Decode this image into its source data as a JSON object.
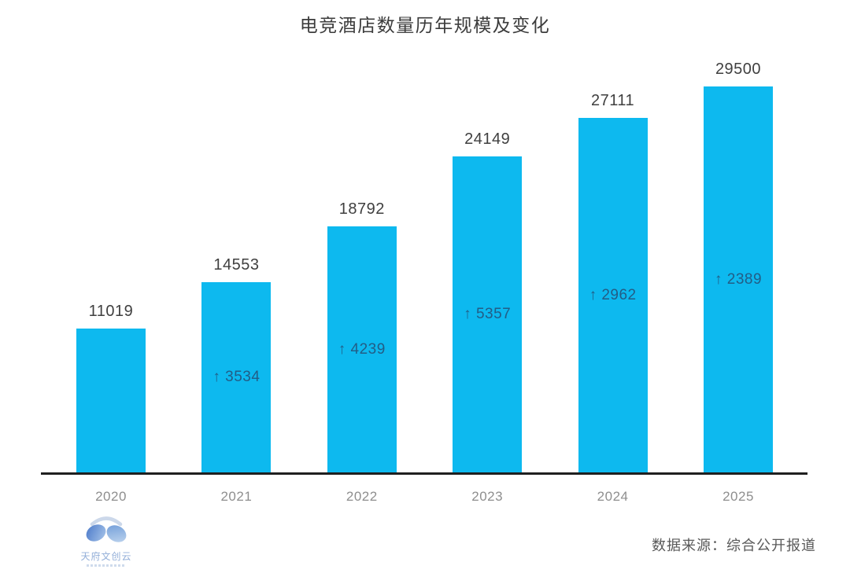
{
  "chart_data": {
    "type": "bar",
    "title": "电竞酒店数量历年规模及变化",
    "categories": [
      "2020",
      "2021",
      "2022",
      "2023",
      "2024",
      "2025"
    ],
    "values": [
      11019,
      14553,
      18792,
      24149,
      27111,
      29500
    ],
    "value_labels": [
      "11019",
      "14553",
      "18792",
      "24149",
      "27111",
      "29500"
    ],
    "deltas": [
      null,
      3534,
      4239,
      5357,
      2962,
      2389
    ],
    "delta_labels": [
      "",
      "↑ 3534",
      "↑ 4239",
      "↑ 5357",
      "↑ 2962",
      "↑ 2389"
    ],
    "ylim": [
      0,
      29500
    ],
    "grid": false,
    "legend": "none",
    "colors": {
      "bar": "#0db9ef",
      "delta_text": "#235d86",
      "value_text": "#3f3f3f",
      "tick_text": "#8e8e8e",
      "axis_line": "#1f1f1f",
      "background": "#ffffff"
    }
  },
  "footer": {
    "logo_text": "天府文创云",
    "source": "数据来源：综合公开报道"
  }
}
